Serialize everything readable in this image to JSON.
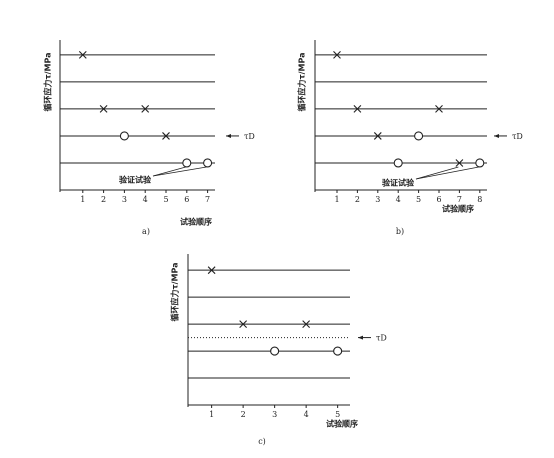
{
  "chart_data": [
    {
      "type": "staircase",
      "caption": "a)",
      "y_label": "循环应力τ/MPa",
      "x_label": "试验顺序",
      "x": [
        1,
        2,
        3,
        4,
        5,
        6,
        7
      ],
      "values": [
        5,
        3,
        2,
        3,
        2,
        1,
        1
      ],
      "markers": [
        "x",
        "x",
        "o",
        "x",
        "x",
        "o",
        "o"
      ],
      "xlim": [
        0,
        7.5
      ],
      "ylim": [
        0,
        5.55
      ],
      "xticks": [
        1,
        2,
        3,
        4,
        5,
        6,
        7
      ],
      "levels": [
        1,
        2,
        3,
        4,
        5
      ],
      "tau_d": {
        "label": "τD",
        "value": 2
      },
      "verification_label": "验证试验",
      "color": "#222222"
    },
    {
      "type": "staircase",
      "caption": "b)",
      "y_label": "循环应力τ/MPa",
      "x_label": "试验顺序",
      "x": [
        1,
        2,
        3,
        4,
        5,
        6,
        7,
        8
      ],
      "values": [
        5,
        3,
        2,
        1,
        2,
        3,
        1,
        1
      ],
      "markers": [
        "x",
        "x",
        "x",
        "o",
        "o",
        "x",
        "x",
        "o"
      ],
      "xlim": [
        0,
        8.5
      ],
      "ylim": [
        0,
        5.55
      ],
      "xticks": [
        1,
        2,
        3,
        4,
        5,
        6,
        7,
        8
      ],
      "levels": [
        1,
        2,
        3,
        4,
        5
      ],
      "tau_d": {
        "label": "τD",
        "value": 2
      },
      "verification_label": "验证试验",
      "color": "#222222"
    },
    {
      "type": "staircase",
      "caption": "c)",
      "y_label": "循环应力τ/MPa",
      "x_label": "试验顺序",
      "x": [
        1,
        2,
        3,
        4,
        5
      ],
      "values": [
        5,
        3,
        2,
        3,
        2
      ],
      "markers": [
        "x",
        "x",
        "o",
        "x",
        "o"
      ],
      "xlim": [
        0.25,
        5.5
      ],
      "ylim": [
        0,
        5.6
      ],
      "xticks": [
        1,
        2,
        3,
        4,
        5
      ],
      "levels": [
        1,
        2,
        3,
        4,
        5
      ],
      "tau_d": {
        "label": "τD",
        "value": 2.5,
        "dotted": true
      },
      "color": "#222222"
    }
  ]
}
